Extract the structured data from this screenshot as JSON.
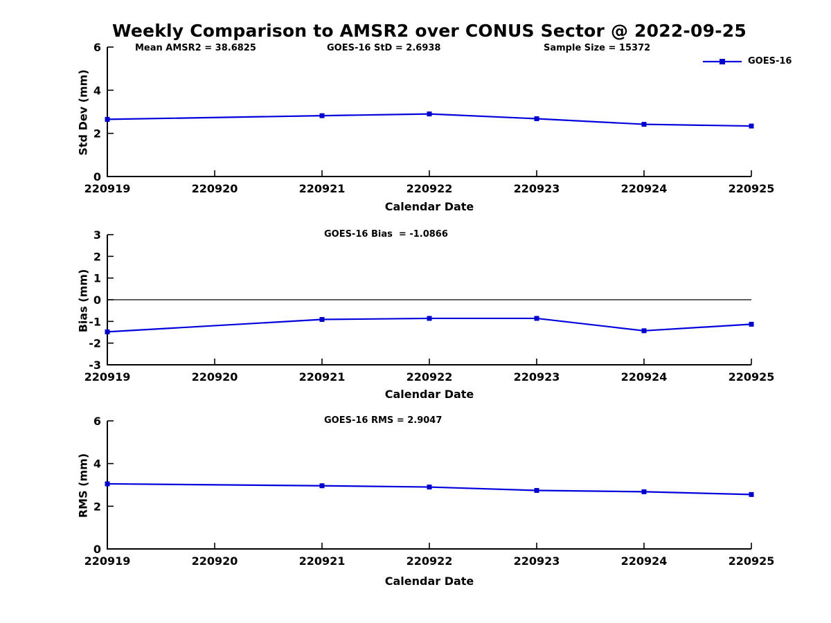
{
  "figure_title": "Weekly Comparison to AMSR2 over CONUS Sector @ 2022-09-25",
  "legend": {
    "label": "GOES-16",
    "position": "top-right-outside"
  },
  "colors": {
    "line": "#0000dd",
    "marker": "#0000cc",
    "axis": "#000000",
    "background": "#ffffff"
  },
  "chart_data": [
    {
      "type": "line",
      "panel": "std_dev",
      "annotations": {
        "left": "Mean AMSR2 = 38.6825",
        "center": "GOES-16 StD = 2.6938",
        "right": "Sample Size = 15372"
      },
      "xlabel": "Calendar Date",
      "ylabel": "Std Dev (mm)",
      "categories": [
        "220919",
        "220920",
        "220921",
        "220922",
        "220923",
        "220924",
        "220925"
      ],
      "ylim": [
        0,
        6
      ],
      "yticks": [
        0,
        2,
        4,
        6
      ],
      "grid": false,
      "zero_line": false,
      "series": [
        {
          "name": "GOES-16",
          "x": [
            "220919",
            "220921",
            "220922",
            "220923",
            "220924",
            "220925"
          ],
          "values": [
            2.65,
            2.82,
            2.9,
            2.68,
            2.42,
            2.34
          ]
        }
      ]
    },
    {
      "type": "line",
      "panel": "bias",
      "annotations": {
        "center": "GOES-16 Bias  = -1.0866"
      },
      "xlabel": "Calendar Date",
      "ylabel": "Bias (mm)",
      "categories": [
        "220919",
        "220920",
        "220921",
        "220922",
        "220923",
        "220924",
        "220925"
      ],
      "ylim": [
        -3,
        3
      ],
      "yticks": [
        -3,
        -2,
        -1,
        0,
        1,
        2,
        3
      ],
      "grid": false,
      "zero_line": true,
      "series": [
        {
          "name": "GOES-16",
          "x": [
            "220919",
            "220921",
            "220922",
            "220923",
            "220924",
            "220925"
          ],
          "values": [
            -1.48,
            -0.91,
            -0.86,
            -0.86,
            -1.43,
            -1.13
          ]
        }
      ]
    },
    {
      "type": "line",
      "panel": "rms",
      "annotations": {
        "center": "GOES-16 RMS = 2.9047"
      },
      "xlabel": "Calendar Date",
      "ylabel": "RMS (mm)",
      "categories": [
        "220919",
        "220920",
        "220921",
        "220922",
        "220923",
        "220924",
        "220925"
      ],
      "ylim": [
        0,
        6
      ],
      "yticks": [
        0,
        2,
        4,
        6
      ],
      "grid": false,
      "zero_line": false,
      "series": [
        {
          "name": "GOES-16",
          "x": [
            "220919",
            "220921",
            "220922",
            "220923",
            "220924",
            "220925"
          ],
          "values": [
            3.05,
            2.96,
            2.9,
            2.74,
            2.68,
            2.55
          ]
        }
      ]
    }
  ]
}
